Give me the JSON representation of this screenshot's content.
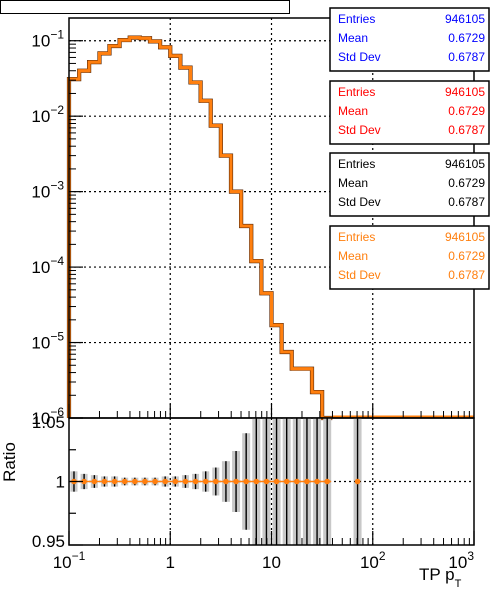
{
  "chart_data": [
    {
      "type": "line",
      "title": "",
      "xscale": "log",
      "yscale": "log",
      "xlim": [
        0.1,
        1000
      ],
      "ylim": [
        1e-06,
        0.2
      ],
      "grid": true,
      "y_ticks": [
        {
          "value": 0.1,
          "base": "10",
          "exp": "−1"
        },
        {
          "value": 0.01,
          "base": "10",
          "exp": "−2"
        },
        {
          "value": 0.001,
          "base": "10",
          "exp": "−3"
        },
        {
          "value": 0.0001,
          "base": "10",
          "exp": "−4"
        },
        {
          "value": 1e-05,
          "base": "10",
          "exp": "−5"
        },
        {
          "value": 1e-06,
          "base": "10",
          "exp": "−6"
        }
      ],
      "series": [
        {
          "color": "#ff7f0e",
          "bins": [
            {
              "x": [
                0.1,
                0.126
              ],
              "y": 0.031
            },
            {
              "x": [
                0.126,
                0.158
              ],
              "y": 0.04
            },
            {
              "x": [
                0.158,
                0.2
              ],
              "y": 0.052
            },
            {
              "x": [
                0.2,
                0.251
              ],
              "y": 0.068
            },
            {
              "x": [
                0.251,
                0.316
              ],
              "y": 0.085
            },
            {
              "x": [
                0.316,
                0.398
              ],
              "y": 0.102
            },
            {
              "x": [
                0.398,
                0.501
              ],
              "y": 0.11
            },
            {
              "x": [
                0.501,
                0.631
              ],
              "y": 0.108
            },
            {
              "x": [
                0.631,
                0.794
              ],
              "y": 0.098
            },
            {
              "x": [
                0.794,
                1.0
              ],
              "y": 0.082
            },
            {
              "x": [
                1.0,
                1.259
              ],
              "y": 0.063
            },
            {
              "x": [
                1.259,
                1.585
              ],
              "y": 0.044
            },
            {
              "x": [
                1.585,
                1.995
              ],
              "y": 0.028
            },
            {
              "x": [
                1.995,
                2.512
              ],
              "y": 0.016
            },
            {
              "x": [
                2.512,
                3.162
              ],
              "y": 0.0075
            },
            {
              "x": [
                3.162,
                3.981
              ],
              "y": 0.003
            },
            {
              "x": [
                3.981,
                5.012
              ],
              "y": 0.001
            },
            {
              "x": [
                5.012,
                6.31
              ],
              "y": 0.00035
            },
            {
              "x": [
                6.31,
                7.943
              ],
              "y": 0.00012
            },
            {
              "x": [
                7.943,
                10.0
              ],
              "y": 4.5e-05
            },
            {
              "x": [
                10.0,
                12.589
              ],
              "y": 1.7e-05
            },
            {
              "x": [
                12.589,
                15.849
              ],
              "y": 7.5e-06
            },
            {
              "x": [
                15.849,
                25.119
              ],
              "y": 4.5e-06
            },
            {
              "x": [
                25.119,
                31.623
              ],
              "y": 2.2e-06
            },
            {
              "x": [
                31.623,
                39.811
              ],
              "y": 1e-06
            }
          ]
        }
      ]
    },
    {
      "type": "scatter",
      "ylabel": "Ratio",
      "xlabel": "TP p",
      "xlabel_sub": "T",
      "xscale": "log",
      "xlim": [
        0.1,
        1000
      ],
      "ylim": [
        0.95,
        1.05
      ],
      "y_ticks": [
        "0.95",
        "1",
        "1.05"
      ],
      "x_ticks": [
        {
          "value": 0.1,
          "base": "10",
          "exp": "−1"
        },
        {
          "value": 1,
          "base": "1",
          "exp": ""
        },
        {
          "value": 10,
          "base": "10",
          "exp": ""
        },
        {
          "value": 100,
          "base": "10",
          "exp": "2"
        },
        {
          "value": 1000,
          "base": "10",
          "exp": "3"
        }
      ],
      "series": [
        {
          "color": "#ff7f0e",
          "points": [
            {
              "x": 0.112,
              "y": 1.0,
              "err": 0.008
            },
            {
              "x": 0.141,
              "y": 1.0,
              "err": 0.006
            },
            {
              "x": 0.178,
              "y": 1.0,
              "err": 0.005
            },
            {
              "x": 0.224,
              "y": 1.0,
              "err": 0.004
            },
            {
              "x": 0.282,
              "y": 1.0,
              "err": 0.004
            },
            {
              "x": 0.355,
              "y": 1.0,
              "err": 0.003
            },
            {
              "x": 0.447,
              "y": 1.0,
              "err": 0.003
            },
            {
              "x": 0.562,
              "y": 1.0,
              "err": 0.003
            },
            {
              "x": 0.708,
              "y": 1.0,
              "err": 0.003
            },
            {
              "x": 0.891,
              "y": 1.0,
              "err": 0.004
            },
            {
              "x": 1.122,
              "y": 1.0,
              "err": 0.004
            },
            {
              "x": 1.413,
              "y": 1.0,
              "err": 0.005
            },
            {
              "x": 1.778,
              "y": 1.0,
              "err": 0.006
            },
            {
              "x": 2.239,
              "y": 1.0,
              "err": 0.008
            },
            {
              "x": 2.818,
              "y": 1.0,
              "err": 0.011
            },
            {
              "x": 3.548,
              "y": 1.0,
              "err": 0.016
            },
            {
              "x": 4.467,
              "y": 1.0,
              "err": 0.024
            },
            {
              "x": 5.623,
              "y": 1.0,
              "err": 0.038
            },
            {
              "x": 7.079,
              "y": 1.0,
              "err": 0.06
            },
            {
              "x": 8.913,
              "y": 1.0,
              "err": 0.06
            },
            {
              "x": 11.22,
              "y": 1.0,
              "err": 0.06
            },
            {
              "x": 14.125,
              "y": 1.0,
              "err": 0.06
            },
            {
              "x": 17.783,
              "y": 1.0,
              "err": 0.06
            },
            {
              "x": 22.387,
              "y": 1.0,
              "err": 0.06
            },
            {
              "x": 28.184,
              "y": 1.0,
              "err": 0.06
            },
            {
              "x": 35.481,
              "y": 1.0,
              "err": 0.06
            },
            {
              "x": 70.795,
              "y": 1.0,
              "err": 0.06
            }
          ]
        }
      ]
    }
  ],
  "stats_boxes": [
    {
      "color": "#0000ff",
      "rows": [
        {
          "label": "Entries",
          "value": "946105"
        },
        {
          "label": "Mean",
          "value": "0.6729"
        },
        {
          "label": "Std Dev",
          "value": "0.6787"
        }
      ]
    },
    {
      "color": "#ff0000",
      "rows": [
        {
          "label": "Entries",
          "value": "946105"
        },
        {
          "label": "Mean",
          "value": "0.6729"
        },
        {
          "label": "Std Dev",
          "value": "0.6787"
        }
      ]
    },
    {
      "color": "#000000",
      "rows": [
        {
          "label": "Entries",
          "value": "946105"
        },
        {
          "label": "Mean",
          "value": "0.6729"
        },
        {
          "label": "Std Dev",
          "value": "0.6787"
        }
      ]
    },
    {
      "color": "#ff7f0e",
      "rows": [
        {
          "label": "Entries",
          "value": "946105"
        },
        {
          "label": "Mean",
          "value": "0.6729"
        },
        {
          "label": "Std Dev",
          "value": "0.6787"
        }
      ]
    }
  ]
}
